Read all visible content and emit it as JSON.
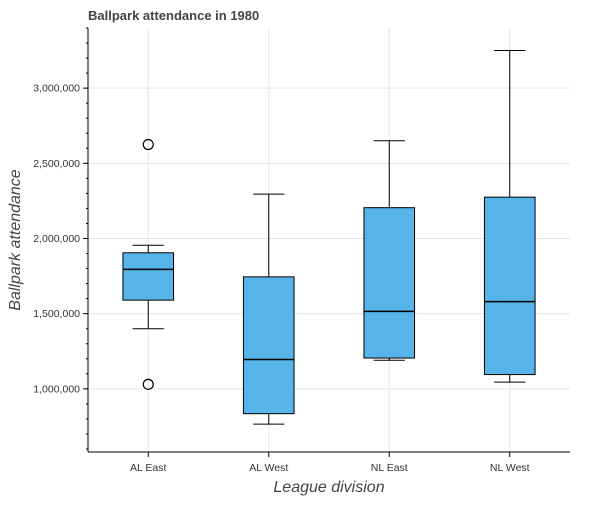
{
  "chart_data": {
    "type": "box",
    "title": "Ballpark attendance in 1980",
    "xlabel": "League division",
    "ylabel": "Ballpark attendance",
    "categories": [
      "AL East",
      "AL West",
      "NL East",
      "NL West"
    ],
    "boxes": [
      {
        "category": "AL East",
        "whisker_low": 1400000,
        "q1": 1590000,
        "median": 1795000,
        "q3": 1905000,
        "whisker_high": 1955000,
        "outliers": [
          1030000,
          2625000
        ]
      },
      {
        "category": "AL West",
        "whisker_low": 765000,
        "q1": 835000,
        "median": 1195000,
        "q3": 1745000,
        "whisker_high": 2295000,
        "outliers": []
      },
      {
        "category": "NL East",
        "whisker_low": 1190000,
        "q1": 1205000,
        "median": 1515000,
        "q3": 2205000,
        "whisker_high": 2650000,
        "outliers": []
      },
      {
        "category": "NL West",
        "whisker_low": 1045000,
        "q1": 1095000,
        "median": 1580000,
        "q3": 2275000,
        "whisker_high": 3250000,
        "outliers": []
      }
    ],
    "ylim": [
      580000,
      3400000
    ],
    "yticks": [
      1000000,
      1500000,
      2000000,
      2500000,
      3000000
    ],
    "ytick_labels": [
      "1,000,000",
      "1,500,000",
      "2,000,000",
      "2,500,000",
      "3,000,000"
    ],
    "grid": true,
    "box_color": "#56b4e9",
    "line_color": "#000000",
    "grid_color": "#e5e5e5"
  }
}
